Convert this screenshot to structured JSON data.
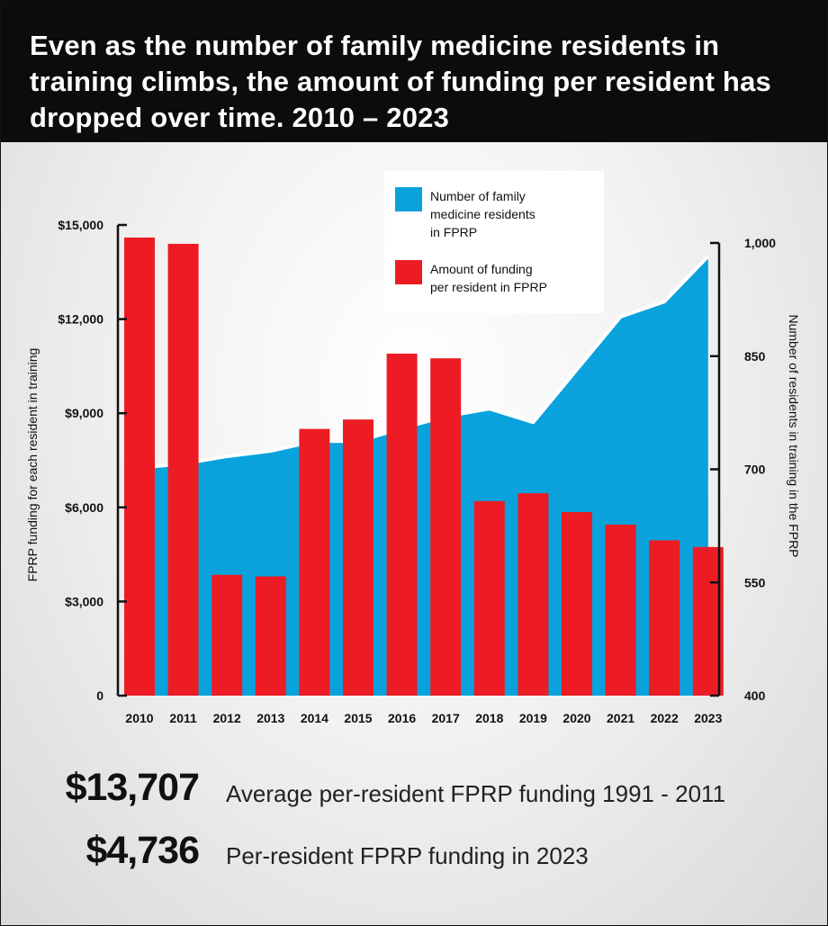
{
  "title": "Even as the number of family medicine residents in training climbs, the amount of funding per resident has dropped over time. 2010 – 2023",
  "chart_data": {
    "type": "bar+area",
    "categories": [
      "2010",
      "2011",
      "2012",
      "2013",
      "2014",
      "2015",
      "2016",
      "2017",
      "2018",
      "2019",
      "2020",
      "2021",
      "2022",
      "2023"
    ],
    "series": [
      {
        "name": "Amount of funding per resident in FPRP",
        "type": "bar",
        "axis": "left",
        "color": "#ed1c24",
        "values": [
          14600,
          14400,
          3850,
          3800,
          8500,
          8800,
          10900,
          10750,
          6200,
          6450,
          5850,
          5450,
          4950,
          4736
        ]
      },
      {
        "name": "Number of family medicine residents in FPRP",
        "type": "area",
        "axis": "right",
        "color": "#0aa2dc",
        "values": [
          700,
          705,
          715,
          722,
          735,
          735,
          752,
          768,
          778,
          760,
          830,
          900,
          920,
          980
        ]
      }
    ],
    "left_axis": {
      "title": "FPRP funding for each resident in training",
      "range": [
        0,
        15000
      ],
      "ticks": [
        0,
        3000,
        6000,
        9000,
        12000,
        15000
      ],
      "tick_labels": [
        "0",
        "$3,000",
        "$6,000",
        "$9,000",
        "$12,000",
        "$15,000"
      ]
    },
    "right_axis": {
      "title": "Number of residents in training in the FPRP",
      "range": [
        400,
        1000
      ],
      "ticks": [
        400,
        550,
        700,
        850,
        1000
      ],
      "tick_labels": [
        "400",
        "550",
        "700",
        "850",
        "1,000"
      ]
    },
    "legend": {
      "placement": "top-center",
      "entries": [
        {
          "label_lines": [
            "Number of family",
            "medicine residents",
            "in FPRP"
          ],
          "color": "#0aa2dc"
        },
        {
          "label_lines": [
            "Amount of funding",
            "per resident in FPRP"
          ],
          "color": "#ed1c24"
        }
      ]
    }
  },
  "stats": [
    {
      "value": "$13,707",
      "label": "Average per-resident FPRP funding 1991 - 2011"
    },
    {
      "value": "$4,736",
      "label": "Per-resident FPRP funding in 2023"
    }
  ]
}
